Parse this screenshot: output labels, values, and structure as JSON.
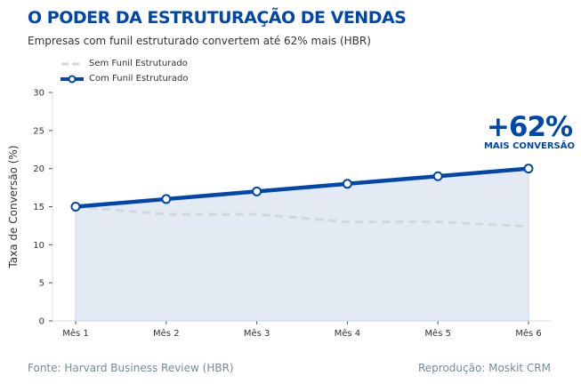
{
  "header": {
    "title": "O PODER DA ESTRUTURAÇÃO DE VENDAS",
    "subtitle": "Empresas com funil estruturado convertem até 62% mais (HBR)"
  },
  "annotation": {
    "value": "+62%",
    "label": "MAIS CONVERSÃO"
  },
  "footer": {
    "source": "Fonte: Harvard Business Review (HBR)",
    "credit": "Reprodução: Moskit CRM"
  },
  "chart_data": {
    "type": "line",
    "categories": [
      "Mês 1",
      "Mês 2",
      "Mês 3",
      "Mês 4",
      "Mês 5",
      "Mês 6"
    ],
    "ylabel": "Taxa de Conversão (%)",
    "ylim": [
      0,
      30
    ],
    "yticks": [
      0,
      5,
      10,
      15,
      20,
      25,
      30
    ],
    "grid": false,
    "legend_position": "top-left",
    "series": [
      {
        "name": "Sem Funil Estruturado",
        "values": [
          15,
          14,
          14,
          13,
          13,
          12.4
        ],
        "color": "#d3d6da",
        "style": "dashed"
      },
      {
        "name": "Com Funil Estruturado",
        "values": [
          15,
          16,
          17,
          18,
          19,
          20
        ],
        "color": "#0047ab",
        "style": "solid-markers",
        "fill": "#e4eaf4"
      }
    ]
  }
}
